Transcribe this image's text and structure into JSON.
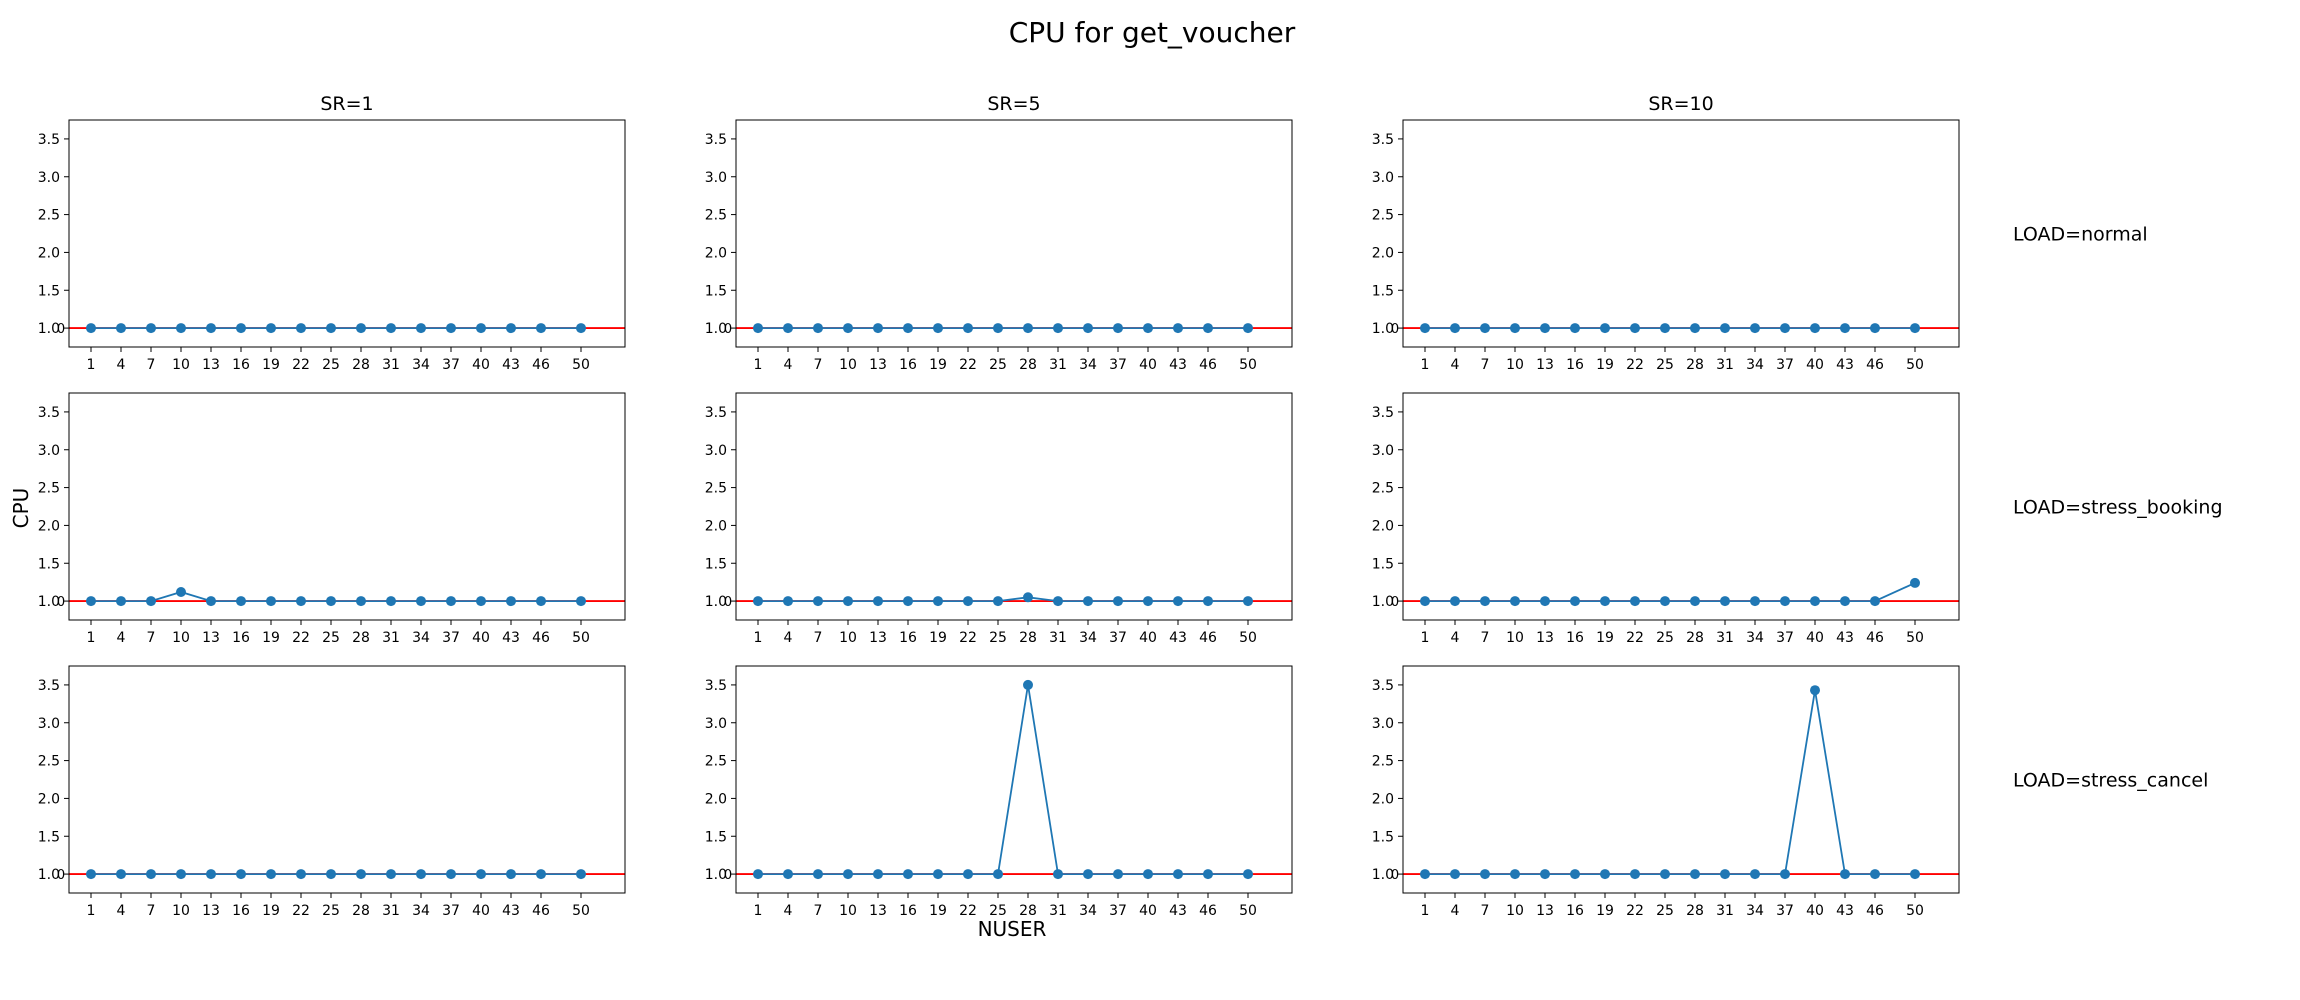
{
  "figure": {
    "title": "CPU for get_voucher",
    "xlabel": "NUSER",
    "ylabel": "CPU",
    "column_titles": [
      "SR=1",
      "SR=5",
      "SR=10"
    ],
    "row_labels": [
      "LOAD=normal",
      "LOAD=stress_booking",
      "LOAD=stress_cancel"
    ],
    "colors": {
      "series": "#1f77b4",
      "reference": "#ff0000",
      "axes": "#000000"
    }
  },
  "chart_data": {
    "type": "line",
    "layout": "3x3 small multiples",
    "x": [
      1,
      4,
      7,
      10,
      13,
      16,
      19,
      22,
      25,
      28,
      31,
      34,
      37,
      40,
      43,
      46,
      50
    ],
    "xticks": [
      1,
      4,
      7,
      10,
      13,
      16,
      19,
      22,
      25,
      28,
      31,
      34,
      37,
      40,
      43,
      46,
      50
    ],
    "ylim": [
      0.75,
      3.75
    ],
    "yticks": [
      1.0,
      1.5,
      2.0,
      2.5,
      3.0,
      3.5
    ],
    "ytick_labels": [
      "1.0",
      "1.5",
      "2.0",
      "2.5",
      "3.0",
      "3.5"
    ],
    "reference_line": {
      "y": 1.0,
      "color": "#ff0000"
    },
    "markers": true,
    "grid": false,
    "panels": [
      {
        "row": "LOAD=normal",
        "col": "SR=1",
        "y": [
          1,
          1,
          1,
          1,
          1,
          1,
          1,
          1,
          1,
          1,
          1,
          1,
          1,
          1,
          1,
          1,
          1
        ]
      },
      {
        "row": "LOAD=normal",
        "col": "SR=5",
        "y": [
          1,
          1,
          1,
          1,
          1,
          1,
          1,
          1,
          1,
          1,
          1,
          1,
          1,
          1,
          1,
          1,
          1
        ]
      },
      {
        "row": "LOAD=normal",
        "col": "SR=10",
        "y": [
          1,
          1,
          1,
          1,
          1,
          1,
          1,
          1,
          1,
          1,
          1,
          1,
          1,
          1,
          1,
          1,
          1
        ]
      },
      {
        "row": "LOAD=stress_booking",
        "col": "SR=1",
        "y": [
          1,
          1,
          1,
          1.12,
          1,
          1,
          1,
          1,
          1,
          1,
          1,
          1,
          1,
          1,
          1,
          1,
          1
        ]
      },
      {
        "row": "LOAD=stress_booking",
        "col": "SR=5",
        "y": [
          1,
          1,
          1,
          1,
          1,
          1,
          1,
          1,
          1,
          1.05,
          1,
          1,
          1,
          1,
          1,
          1,
          1
        ]
      },
      {
        "row": "LOAD=stress_booking",
        "col": "SR=10",
        "y": [
          1,
          1,
          1,
          1,
          1,
          1,
          1,
          1,
          1,
          1,
          1,
          1,
          1,
          1,
          1,
          1,
          1.24
        ]
      },
      {
        "row": "LOAD=stress_cancel",
        "col": "SR=1",
        "y": [
          1,
          1,
          1,
          1,
          1,
          1,
          1,
          1,
          1,
          1,
          1,
          1,
          1,
          1,
          1,
          1,
          1
        ]
      },
      {
        "row": "LOAD=stress_cancel",
        "col": "SR=5",
        "y": [
          1,
          1,
          1,
          1,
          1,
          1,
          1,
          1,
          1,
          3.5,
          1,
          1,
          1,
          1,
          1,
          1,
          1
        ]
      },
      {
        "row": "LOAD=stress_cancel",
        "col": "SR=10",
        "y": [
          1,
          1,
          1,
          1,
          1,
          1,
          1,
          1,
          1,
          1,
          1,
          1,
          1,
          3.43,
          1,
          1,
          1
        ]
      }
    ]
  }
}
